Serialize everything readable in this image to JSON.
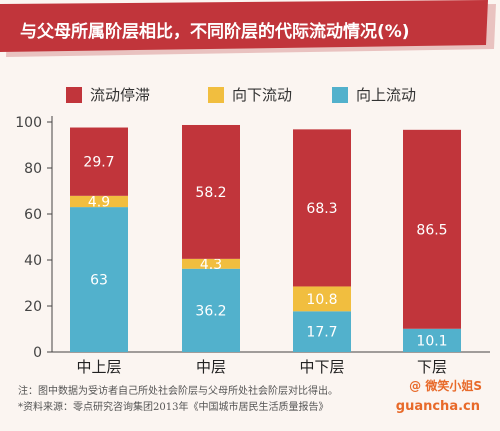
{
  "title": "与父母所属阶层相比，不同阶层的代际流动情况(%)",
  "chart_data": {
    "type": "bar",
    "stacked": true,
    "categories": [
      "中上层",
      "中层",
      "中下层",
      "下层"
    ],
    "series": [
      {
        "name": "向上流动",
        "color": "#52b1cc",
        "values": [
          63,
          36.2,
          17.7,
          10.1
        ]
      },
      {
        "name": "向下流动",
        "color": "#f1be3f",
        "values": [
          4.9,
          4.3,
          10.8,
          0
        ]
      },
      {
        "name": "流动停滞",
        "color": "#c1353b",
        "values": [
          29.7,
          58.2,
          68.3,
          86.5
        ]
      }
    ],
    "value_labels": [
      [
        "63",
        "4.9",
        "29.7"
      ],
      [
        "36.2",
        "4.3",
        "58.2"
      ],
      [
        "17.7",
        "10.8",
        "68.3"
      ],
      [
        "10.1",
        "",
        "86.5"
      ]
    ],
    "yticks": [
      "0",
      "20",
      "40",
      "60",
      "80",
      "100"
    ],
    "ylim": [
      0,
      100
    ],
    "legend_order": [
      "流动停滞",
      "向下流动",
      "向上流动"
    ],
    "legend_position": "top"
  },
  "notes": [
    "注：图中数据为受访者自己所处社会阶层与父母所处社会阶层对比得出。",
    "*资料来源：零点研究咨询集团2013年《中国城市居民生活质量报告》"
  ],
  "watermark": {
    "weibo": "@ 微笑小姐S",
    "site": "guancha.cn"
  },
  "colors": {
    "title_bg": "#c1353b",
    "title_shadow": "#e9c2c0",
    "page_bg": "#fbf5f1"
  }
}
